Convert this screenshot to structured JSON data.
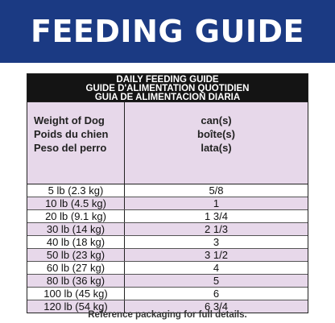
{
  "banner": {
    "title": "FEEDING GUIDE"
  },
  "table": {
    "title_lines": [
      "DAILY FEEDING GUIDE",
      "GUIDE D'ALIMENTATION QUOTIDIEN",
      "GUIA DE ALIMENTACION DIARIA"
    ],
    "col1_header": [
      "Weight of Dog",
      "Poids du chien",
      "Peso del perro"
    ],
    "col2_header": [
      "can(s)",
      "boîte(s)",
      "lata(s)"
    ],
    "rows": [
      {
        "weight": "5 lb (2.3 kg)",
        "cans": "5/8"
      },
      {
        "weight": "10 lb (4.5 kg)",
        "cans": "1"
      },
      {
        "weight": "20 lb (9.1 kg)",
        "cans": "1 3/4"
      },
      {
        "weight": "30 lb (14 kg)",
        "cans": "2 1/3"
      },
      {
        "weight": "40 lb (18 kg)",
        "cans": "3"
      },
      {
        "weight": "50 lb (23 kg)",
        "cans": "3 1/2"
      },
      {
        "weight": "60 lb (27 kg)",
        "cans": "4"
      },
      {
        "weight": "80 lb (36 kg)",
        "cans": "5"
      },
      {
        "weight": "100 lb (45 kg)",
        "cans": "6"
      },
      {
        "weight": "120 lb (54 kg)",
        "cans": "6 3/4"
      }
    ]
  },
  "footer": {
    "note": "Reference packaging for full details."
  }
}
